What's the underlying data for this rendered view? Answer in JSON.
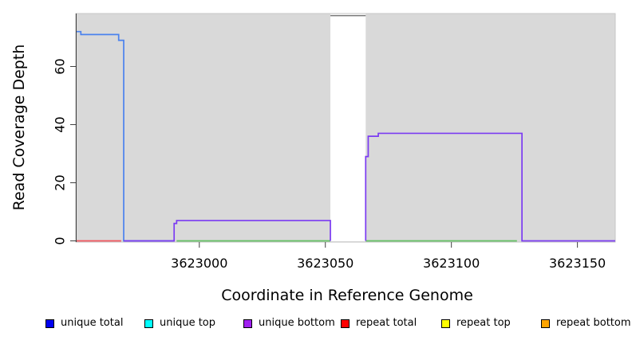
{
  "y_axis": {
    "label": "Read Coverage Depth",
    "ticks": [
      0,
      20,
      40,
      60
    ]
  },
  "x_axis": {
    "label": "Coordinate in Reference Genome",
    "ticks": [
      3623000,
      3623050,
      3623100,
      3623150
    ]
  },
  "legend": {
    "items": [
      {
        "label": "unique total",
        "color": "#0000f0"
      },
      {
        "label": "unique top",
        "color": "#00ffff"
      },
      {
        "label": "unique bottom",
        "color": "#a020f0"
      },
      {
        "label": "repeat total",
        "color": "#ff0000"
      },
      {
        "label": "repeat top",
        "color": "#ffff00"
      },
      {
        "label": "repeat bottom",
        "color": "#ffa500"
      }
    ]
  },
  "chart_data": {
    "type": "line",
    "step": true,
    "title": "",
    "xlabel": "Coordinate in Reference Genome",
    "ylabel": "Read Coverage Depth",
    "xlim": [
      3622951,
      3623165
    ],
    "ylim": [
      0,
      78
    ],
    "x_ticks": [
      3623000,
      3623050,
      3623100,
      3623150
    ],
    "y_ticks": [
      0,
      20,
      40,
      60
    ],
    "grid": false,
    "plot_bg": "#d9d9d9",
    "plot_border": "#c6c6c6",
    "repeat_gap": {
      "x_start": 3623052,
      "x_end": 3623066,
      "fill": "#ffffff",
      "top_line_value": 77.5,
      "top_line_color": "#777777"
    },
    "series": [
      {
        "name": "repeat-total-baseline",
        "color": "#f2555e",
        "runs": [
          [
            3622951,
            3622969,
            0
          ]
        ]
      },
      {
        "name": "green-baseline",
        "color": "#63c063",
        "runs": [
          [
            3622991,
            3623052,
            0
          ],
          [
            3623066,
            3623126,
            0
          ]
        ]
      },
      {
        "name": "unique-total",
        "color": "#4b82ee",
        "runs": [
          [
            3622951,
            3622953,
            72
          ],
          [
            3622953,
            3622968,
            71
          ],
          [
            3622968,
            3622970,
            69
          ],
          [
            3622970,
            3622990,
            0
          ]
        ]
      },
      {
        "name": "offscale-repeat-coverage",
        "color": "#777777",
        "runs": [
          [
            3623052,
            3623066,
            77.5
          ]
        ]
      },
      {
        "name": "unique-bottom",
        "color": "#7b3bf2",
        "runs": [
          [
            3622970,
            3622990,
            0
          ],
          [
            3622990,
            3622991,
            6
          ],
          [
            3622991,
            3623052,
            7
          ],
          [
            3623066,
            3623067,
            29
          ],
          [
            3623067,
            3623071,
            36
          ],
          [
            3623071,
            3623128,
            37
          ],
          [
            3623128,
            3623165,
            0
          ]
        ]
      }
    ]
  }
}
